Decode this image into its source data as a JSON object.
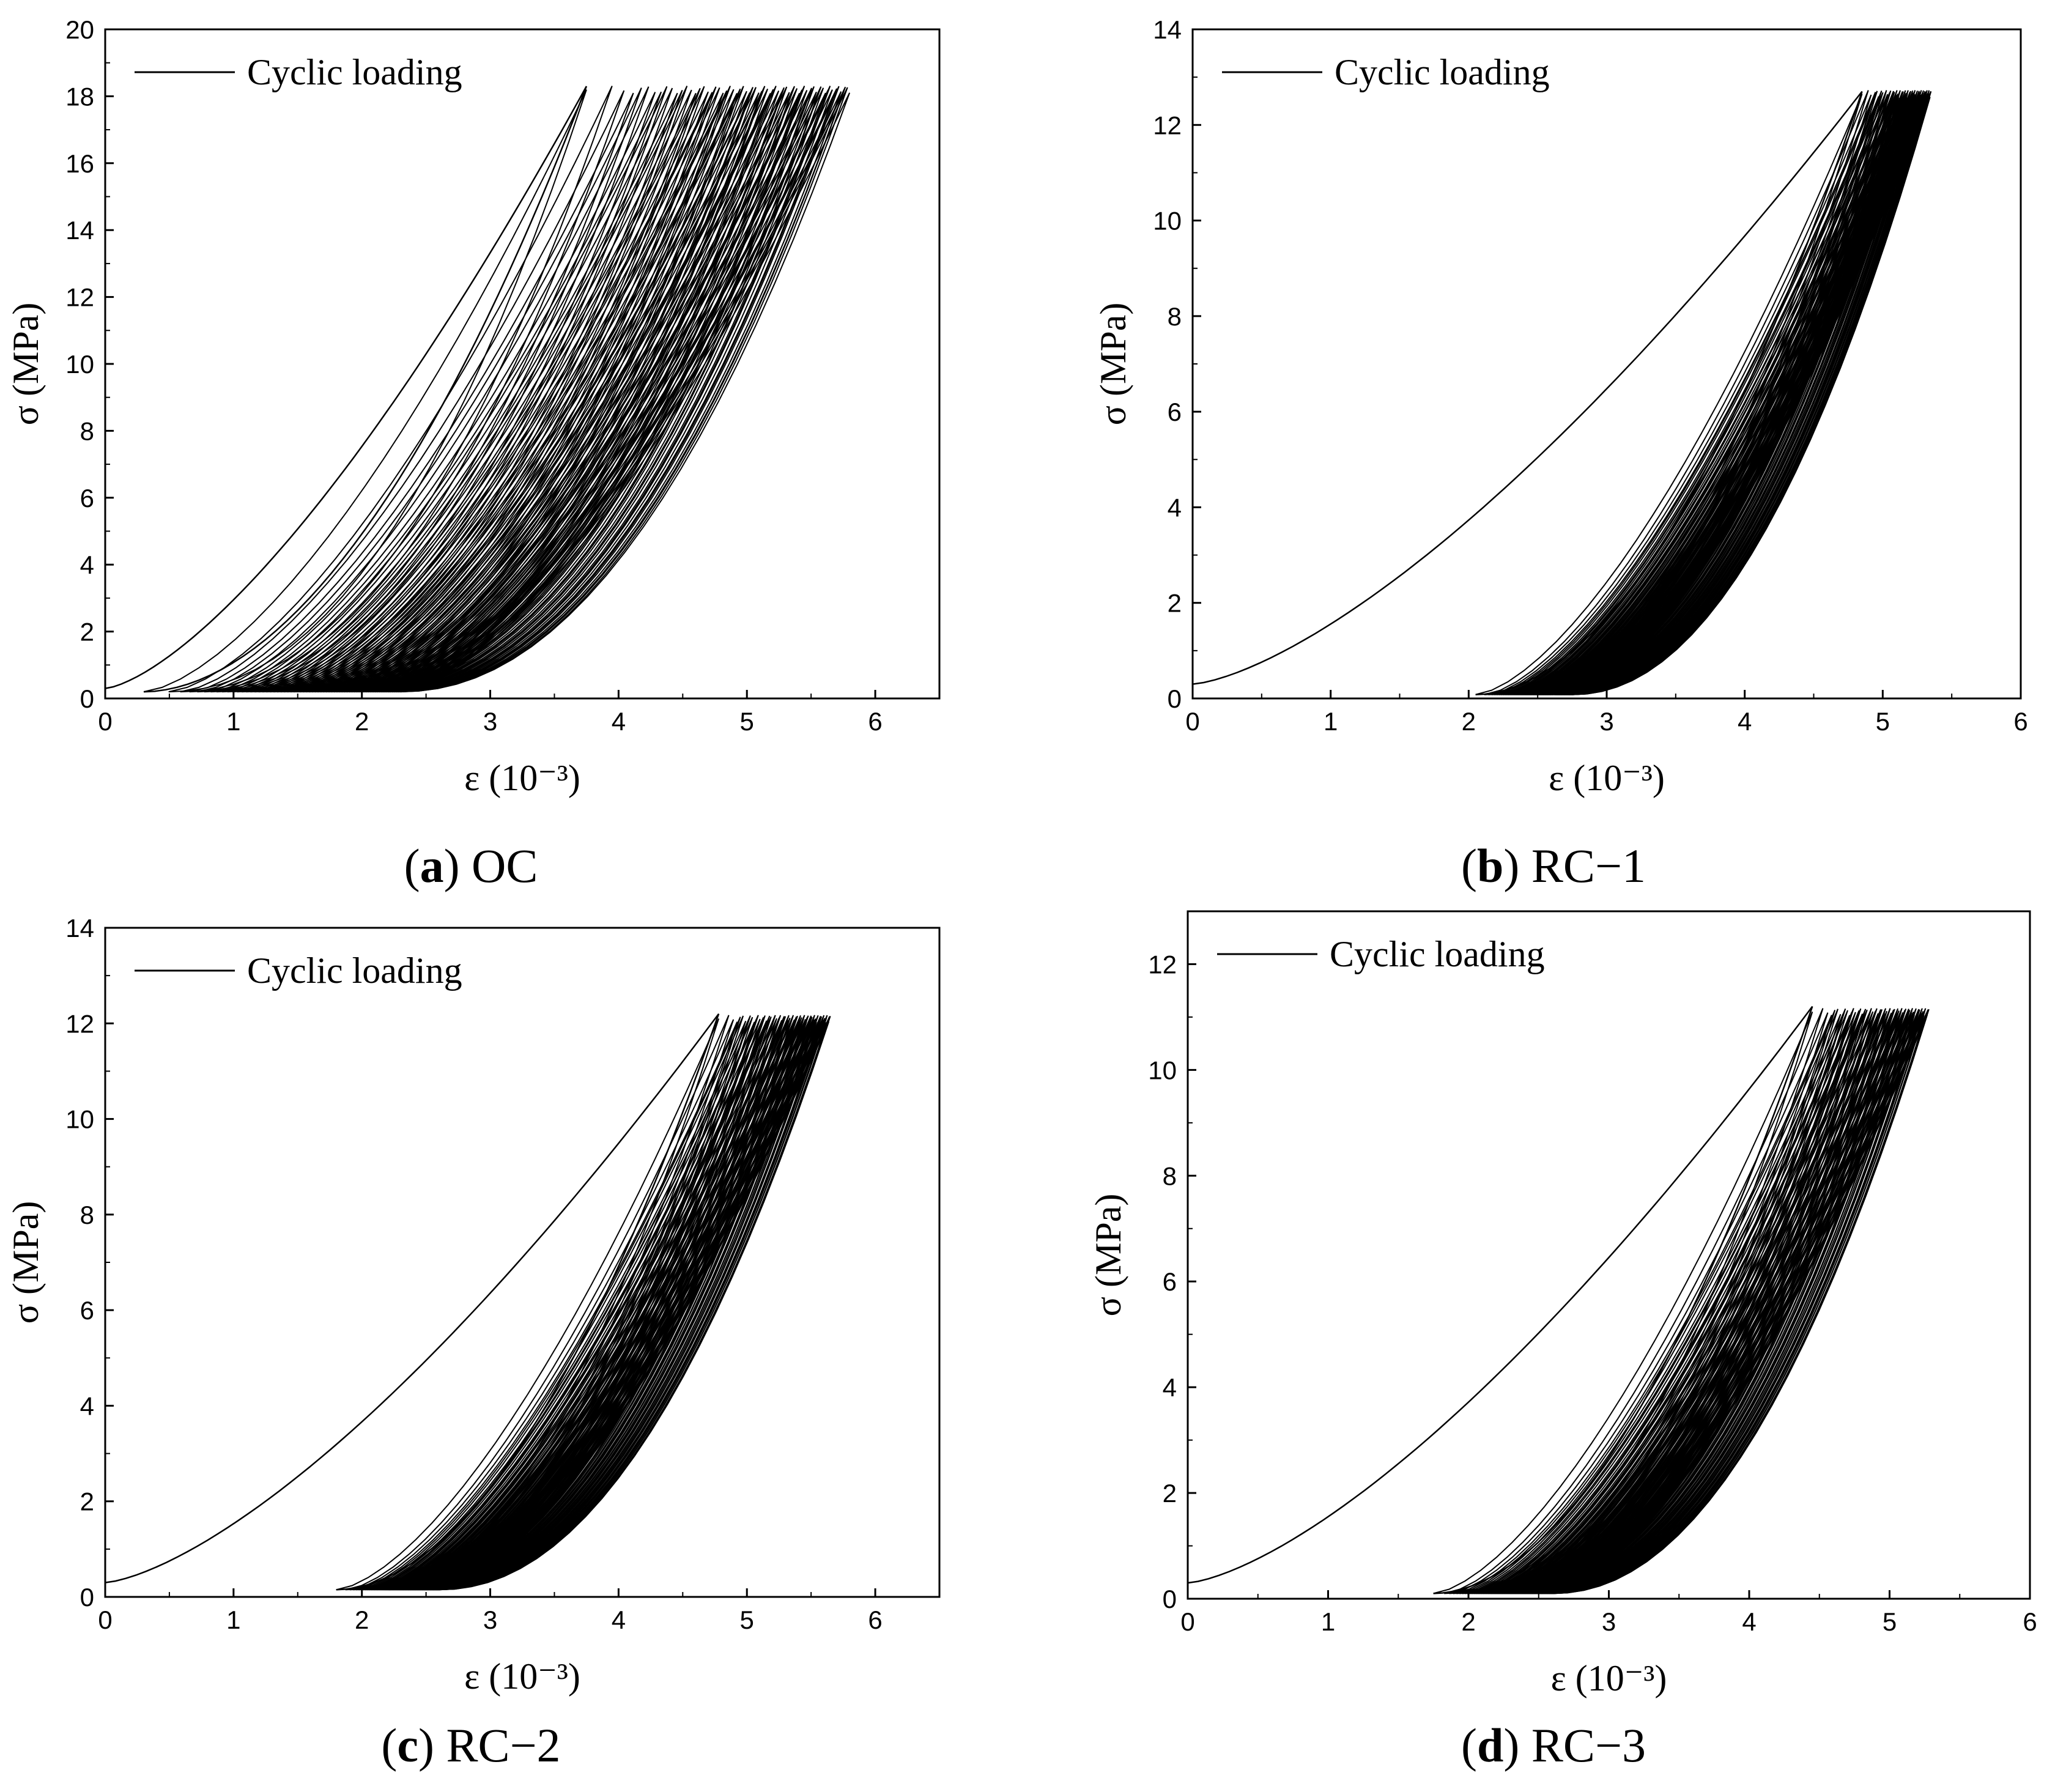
{
  "chart_data": [
    {
      "id": "a",
      "type": "line",
      "caption_letter": "a",
      "caption_name": "OC",
      "xlabel": "ε (10⁻³)",
      "ylabel": "σ (MPa)",
      "xlim": [
        0,
        6.5
      ],
      "ylim": [
        0,
        20
      ],
      "xticks": [
        "0",
        "1",
        "2",
        "3",
        "4",
        "5",
        "6"
      ],
      "yticks": [
        "0",
        "2",
        "4",
        "6",
        "8",
        "10",
        "12",
        "14",
        "16",
        "18",
        "20"
      ],
      "legend": "Cyclic loading",
      "legend_position": "top-left",
      "series": [
        {
          "name": "Cyclic loading",
          "color": "#000000",
          "first_loading": {
            "start": [
              0,
              0.3
            ],
            "peak": [
              3.75,
              18.3
            ]
          },
          "loops": {
            "count": 70,
            "residual_strain_range": [
              0.3,
              2.3
            ],
            "peak_strain_range": [
              3.75,
              5.8
            ],
            "peak_stress": 18.2,
            "unload_stress": 0.2
          }
        }
      ]
    },
    {
      "id": "b",
      "type": "line",
      "caption_letter": "b",
      "caption_name": "RC−1",
      "xlabel": "ε (10⁻³)",
      "ylabel": "σ (MPa)",
      "xlim": [
        0,
        6
      ],
      "ylim": [
        0,
        14
      ],
      "xticks": [
        "0",
        "1",
        "2",
        "3",
        "4",
        "5",
        "6"
      ],
      "yticks": [
        "0",
        "2",
        "4",
        "6",
        "8",
        "10",
        "12",
        "14"
      ],
      "legend": "Cyclic loading",
      "legend_position": "top-left",
      "series": [
        {
          "name": "Cyclic loading",
          "color": "#000000",
          "first_loading": {
            "start": [
              0,
              0.3
            ],
            "peak": [
              4.85,
              12.7
            ]
          },
          "loops": {
            "count": 80,
            "residual_strain_range": [
              2.05,
              2.75
            ],
            "peak_strain_range": [
              4.85,
              5.35
            ],
            "peak_stress": 12.65,
            "unload_stress": 0.08
          }
        }
      ]
    },
    {
      "id": "c",
      "type": "line",
      "caption_letter": "c",
      "caption_name": "RC−2",
      "xlabel": "ε (10⁻³)",
      "ylabel": "σ (MPa)",
      "xlim": [
        0,
        6.5
      ],
      "ylim": [
        0,
        14
      ],
      "xticks": [
        "0",
        "1",
        "2",
        "3",
        "4",
        "5",
        "6"
      ],
      "yticks": [
        "0",
        "2",
        "4",
        "6",
        "8",
        "10",
        "12",
        "14"
      ],
      "legend": "Cyclic loading",
      "legend_position": "top-left",
      "series": [
        {
          "name": "Cyclic loading",
          "color": "#000000",
          "first_loading": {
            "start": [
              0,
              0.3
            ],
            "peak": [
              4.78,
              12.2
            ]
          },
          "loops": {
            "count": 80,
            "residual_strain_range": [
              1.8,
              2.6
            ],
            "peak_strain_range": [
              4.78,
              5.65
            ],
            "peak_stress": 12.1,
            "unload_stress": 0.15
          }
        }
      ]
    },
    {
      "id": "d",
      "type": "line",
      "caption_letter": "d",
      "caption_name": "RC−3",
      "xlabel": "ε (10⁻³)",
      "ylabel": "σ (MPa)",
      "xlim": [
        0,
        6
      ],
      "ylim": [
        0,
        13
      ],
      "xticks": [
        "0",
        "1",
        "2",
        "3",
        "4",
        "5",
        "6"
      ],
      "yticks": [
        "0",
        "2",
        "4",
        "6",
        "8",
        "10",
        "12"
      ],
      "legend": "Cyclic loading",
      "legend_position": "top-left",
      "series": [
        {
          "name": "Cyclic loading",
          "color": "#000000",
          "first_loading": {
            "start": [
              0,
              0.3
            ],
            "peak": [
              4.45,
              11.2
            ]
          },
          "loops": {
            "count": 80,
            "residual_strain_range": [
              1.75,
              2.6
            ],
            "peak_strain_range": [
              4.45,
              5.28
            ],
            "peak_stress": 11.1,
            "unload_stress": 0.1
          }
        }
      ]
    }
  ]
}
